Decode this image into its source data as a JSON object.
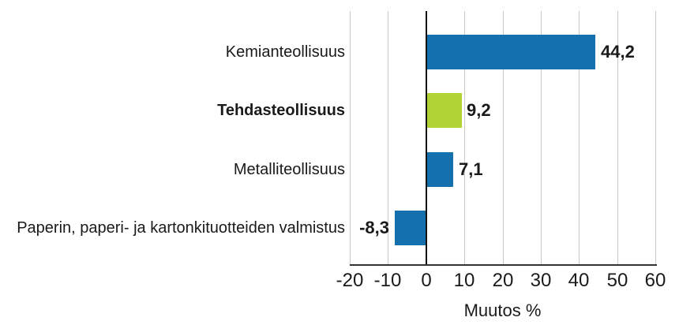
{
  "chart_data": {
    "type": "bar",
    "orientation": "horizontal",
    "categories": [
      "Kemianteollisuus",
      "Tehdasteollisuus",
      "Metalliteollisuus",
      "Paperin, paperi- ja kartonkituotteiden valmistus"
    ],
    "values": [
      44.2,
      9.2,
      7.1,
      -8.3
    ],
    "value_labels": [
      "44,2",
      "9,2",
      "7,1",
      "-8,3"
    ],
    "emphasis": [
      false,
      true,
      false,
      false
    ],
    "bar_colors": [
      "#1571ad",
      "#b2d334",
      "#1571ad",
      "#1571ad"
    ],
    "title": "",
    "xlabel": "Muutos %",
    "ylabel": "",
    "xlim": [
      -20,
      60
    ],
    "xticks": [
      -20,
      -10,
      0,
      10,
      20,
      30,
      40,
      50,
      60
    ],
    "xtick_labels": [
      "-20",
      "-10",
      "0",
      "10",
      "20",
      "30",
      "40",
      "50",
      "60"
    ],
    "grid": true,
    "legend": false,
    "grid_color": "#c9c9c9",
    "axis_color": "#333333",
    "zero_line_color": "#111111",
    "text_color": "#1a1a1a",
    "background_color": "#ffffff"
  }
}
